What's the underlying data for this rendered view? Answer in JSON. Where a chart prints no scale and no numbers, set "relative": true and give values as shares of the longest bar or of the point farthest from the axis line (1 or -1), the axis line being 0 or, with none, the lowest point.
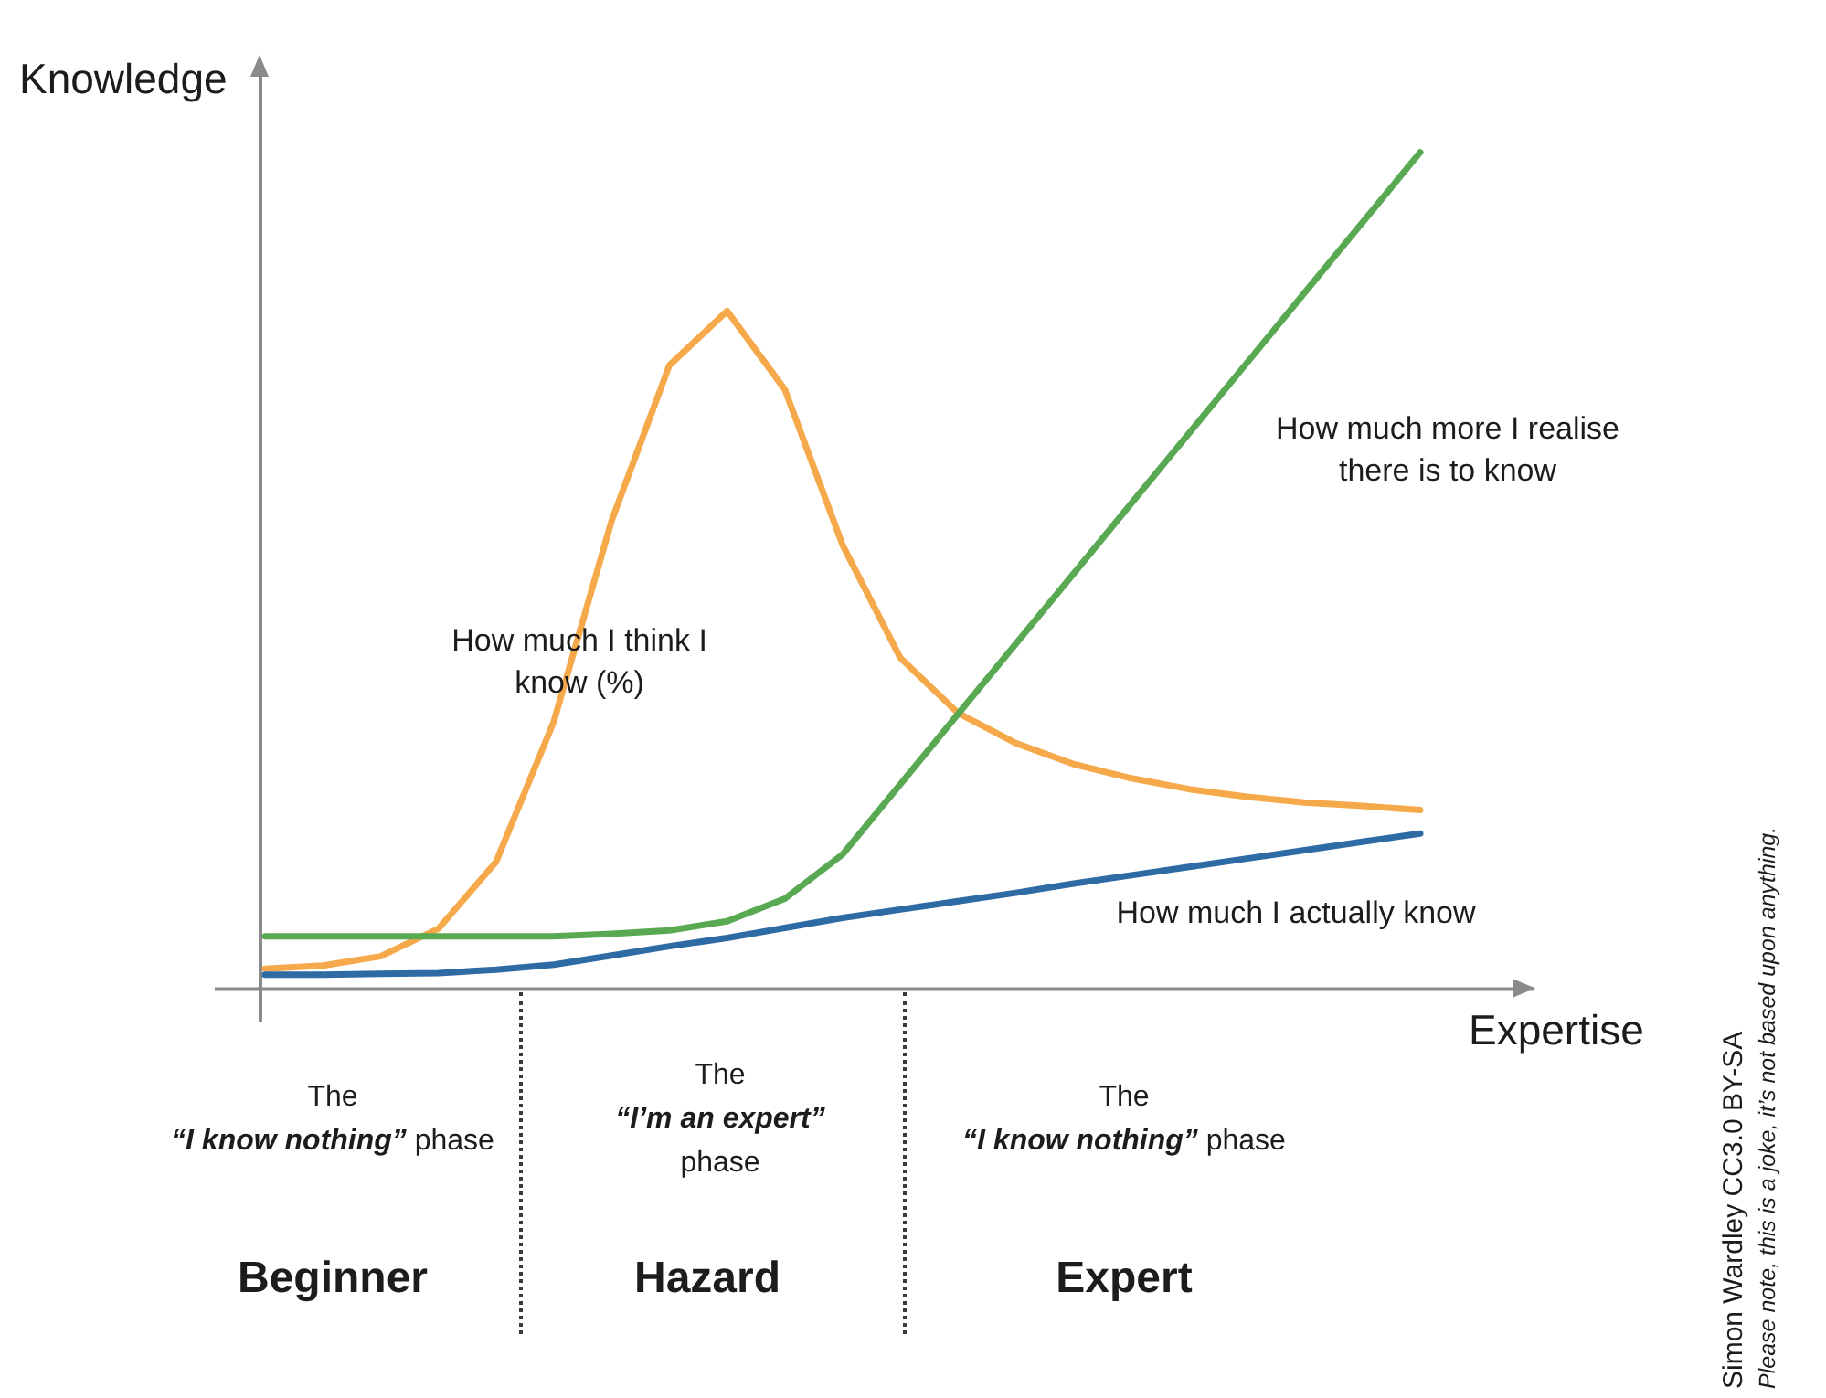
{
  "chart_data": {
    "type": "line",
    "relative": true,
    "xlabel": "Expertise",
    "ylabel": "Knowledge",
    "categories": [
      null,
      null,
      null,
      null,
      null,
      null,
      null,
      null,
      null,
      null,
      null,
      null,
      null,
      null,
      null,
      null,
      null,
      null,
      null,
      null,
      null
    ],
    "series": [
      {
        "name": "How much I think I know (%)",
        "color": "#f6a94b",
        "values": [
          0.023,
          0.027,
          0.038,
          0.071,
          0.151,
          0.319,
          0.559,
          0.745,
          0.81,
          0.716,
          0.53,
          0.395,
          0.329,
          0.293,
          0.268,
          0.251,
          0.238,
          0.229,
          0.222,
          0.218,
          0.213
        ]
      },
      {
        "name": "How much more I realise there is to know",
        "color": "#59a952",
        "values": [
          0.062,
          0.062,
          0.062,
          0.062,
          0.062,
          0.062,
          0.065,
          0.069,
          0.08,
          0.107,
          0.16,
          0.244,
          0.328,
          0.412,
          0.496,
          0.58,
          0.664,
          0.748,
          0.832,
          0.916,
          1
        ]
      },
      {
        "name": "How much I actually know",
        "color": "#2e6aa3",
        "values": [
          0.016,
          0.016,
          0.017,
          0.018,
          0.022,
          0.028,
          0.039,
          0.05,
          0.06,
          0.072,
          0.084,
          0.094,
          0.104,
          0.114,
          0.125,
          0.135,
          0.145,
          0.155,
          0.165,
          0.175,
          0.185
        ]
      }
    ],
    "annotations": [
      "The\n“I know nothing” phase",
      "The\n“I’m an expert”\nphase",
      "The\n“I know nothing” phase",
      "Beginner",
      "Hazard",
      "Expert",
      "Simon Wardley CC3.0 BY-SA",
      "Please note, this is a joke, it’s not based upon anything."
    ]
  }
}
